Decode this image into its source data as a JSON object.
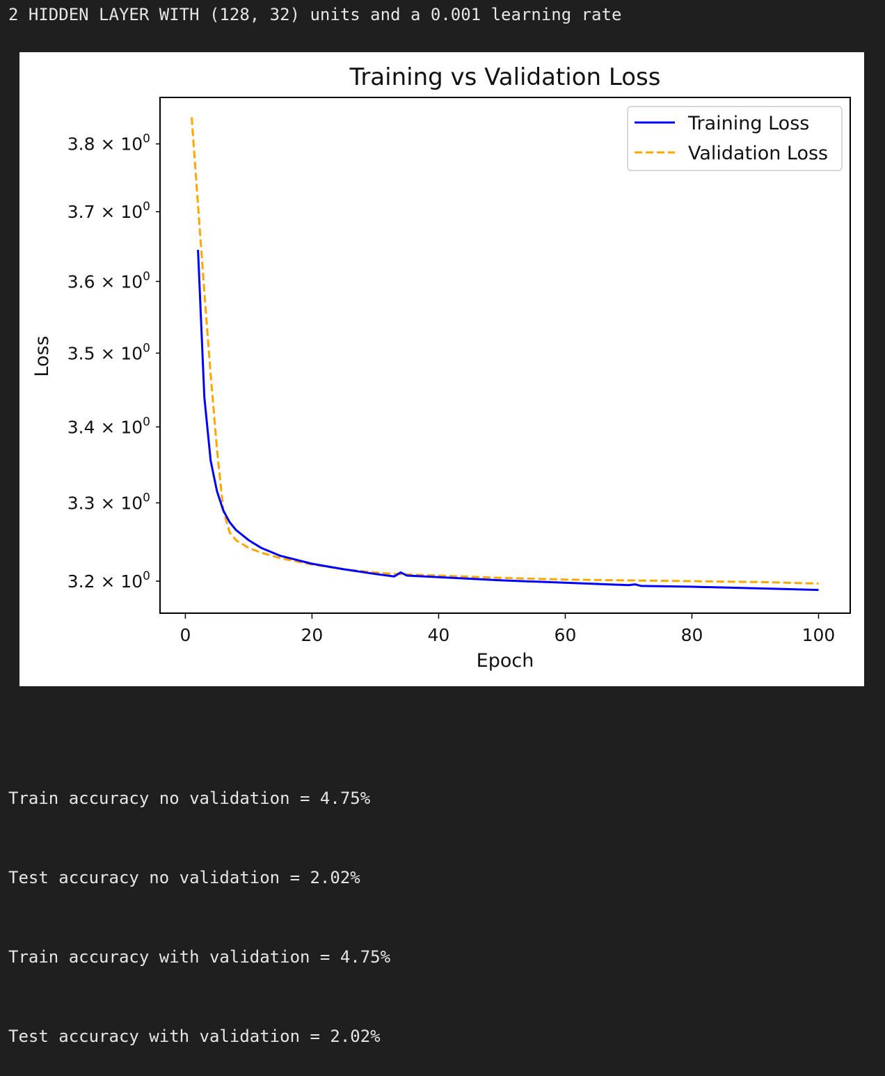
{
  "header": {
    "title": "2 HIDDEN LAYER WITH (128, 32) units and a 0.001 learning rate"
  },
  "chart_data": {
    "type": "line",
    "title": "Training vs Validation Loss",
    "xlabel": "Epoch",
    "ylabel": "Loss",
    "yscale": "log",
    "grid": false,
    "legend_position": "top-right",
    "xlim": [
      -4,
      105
    ],
    "ylim": [
      3.16,
      3.87
    ],
    "xticks": [
      0,
      20,
      40,
      60,
      80,
      100
    ],
    "xtick_labels": [
      "0",
      "20",
      "40",
      "60",
      "80",
      "100"
    ],
    "yticks": [
      3.2,
      3.3,
      3.4,
      3.5,
      3.6,
      3.7,
      3.8
    ],
    "ytick_labels": [
      {
        "mantissa": "3.2",
        "exp": "0"
      },
      {
        "mantissa": "3.3",
        "exp": "0"
      },
      {
        "mantissa": "3.4",
        "exp": "0"
      },
      {
        "mantissa": "3.5",
        "exp": "0"
      },
      {
        "mantissa": "3.6",
        "exp": "0"
      },
      {
        "mantissa": "3.7",
        "exp": "0"
      },
      {
        "mantissa": "3.8",
        "exp": "0"
      }
    ],
    "series": [
      {
        "name": "Training Loss",
        "color": "#0000ff",
        "style": "solid",
        "x": [
          2,
          3,
          4,
          5,
          6,
          7,
          8,
          10,
          12,
          15,
          20,
          25,
          30,
          33,
          34,
          35,
          40,
          50,
          60,
          70,
          71,
          72,
          80,
          90,
          100
        ],
        "y": [
          3.645,
          3.44,
          3.355,
          3.315,
          3.29,
          3.275,
          3.265,
          3.252,
          3.242,
          3.232,
          3.222,
          3.215,
          3.209,
          3.206,
          3.211,
          3.207,
          3.205,
          3.201,
          3.198,
          3.195,
          3.196,
          3.194,
          3.193,
          3.191,
          3.189
        ]
      },
      {
        "name": "Validation Loss",
        "color": "#ffa500",
        "style": "dashed",
        "x": [
          1,
          2,
          3,
          4,
          5,
          6,
          7,
          8,
          10,
          12,
          15,
          20,
          25,
          30,
          33,
          40,
          50,
          60,
          70,
          80,
          90,
          100
        ],
        "y": [
          3.84,
          3.71,
          3.585,
          3.47,
          3.37,
          3.29,
          3.262,
          3.252,
          3.242,
          3.236,
          3.229,
          3.221,
          3.215,
          3.211,
          3.209,
          3.207,
          3.204,
          3.202,
          3.201,
          3.2,
          3.199,
          3.197
        ]
      }
    ]
  },
  "output": {
    "lines": [
      "Train accuracy no validation = 4.75%",
      "Test accuracy no validation = 2.02%",
      "Train accuracy with validation = 4.75%",
      "Test accuracy with validation = 2.02%"
    ]
  }
}
